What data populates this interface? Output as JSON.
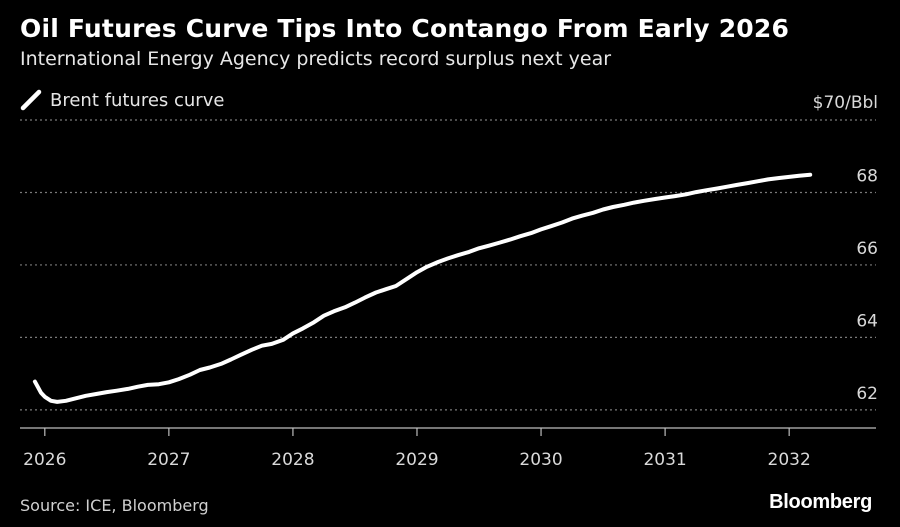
{
  "header": {
    "title": "Oil Futures Curve Tips Into Contango From Early 2026",
    "subtitle": "International Energy Agency predicts record surplus next year"
  },
  "legend": {
    "label": "Brent futures curve",
    "color": "#ffffff"
  },
  "footer": {
    "source": "Source: ICE, Bloomberg",
    "brand": "Bloomberg"
  },
  "chart_data": {
    "type": "line",
    "title": "Oil Futures Curve Tips Into Contango From Early 2026",
    "subtitle": "International Energy Agency predicts record surplus next year",
    "xlabel": "",
    "ylabel": "",
    "y_unit_label": "$70/Bbl",
    "xlim": [
      2025.8,
      2032.7
    ],
    "ylim": [
      61.5,
      70
    ],
    "y_ticks": [
      62,
      64,
      66,
      68
    ],
    "x_ticks": [
      2026,
      2027,
      2028,
      2029,
      2030,
      2031,
      2032
    ],
    "grid": "horizontal dotted",
    "legend_position": "top-left",
    "series": [
      {
        "name": "Brent futures curve",
        "color": "#ffffff",
        "x": [
          2025.92,
          2025.97,
          2026.0,
          2026.05,
          2026.1,
          2026.17,
          2026.25,
          2026.33,
          2026.42,
          2026.5,
          2026.58,
          2026.67,
          2026.75,
          2026.83,
          2026.92,
          2027.0,
          2027.08,
          2027.17,
          2027.25,
          2027.33,
          2027.42,
          2027.5,
          2027.58,
          2027.67,
          2027.75,
          2027.83,
          2027.92,
          2028.0,
          2028.08,
          2028.17,
          2028.25,
          2028.33,
          2028.42,
          2028.5,
          2028.58,
          2028.67,
          2028.75,
          2028.83,
          2028.92,
          2029.0,
          2029.08,
          2029.17,
          2029.25,
          2029.33,
          2029.42,
          2029.5,
          2029.58,
          2029.67,
          2029.75,
          2029.83,
          2029.92,
          2030.0,
          2030.08,
          2030.17,
          2030.25,
          2030.33,
          2030.42,
          2030.5,
          2030.58,
          2030.67,
          2030.75,
          2030.83,
          2030.92,
          2031.0,
          2031.08,
          2031.17,
          2031.25,
          2031.33,
          2031.42,
          2031.5,
          2031.58,
          2031.67,
          2031.75,
          2031.83,
          2031.92,
          2032.0,
          2032.08,
          2032.17
        ],
        "values": [
          62.78,
          62.47,
          62.36,
          62.25,
          62.22,
          62.25,
          62.32,
          62.39,
          62.44,
          62.49,
          62.53,
          62.58,
          62.64,
          62.69,
          62.71,
          62.76,
          62.85,
          62.97,
          63.1,
          63.17,
          63.27,
          63.39,
          63.52,
          63.66,
          63.77,
          63.82,
          63.93,
          64.11,
          64.25,
          64.42,
          64.6,
          64.72,
          64.83,
          64.96,
          65.1,
          65.24,
          65.33,
          65.42,
          65.62,
          65.8,
          65.95,
          66.08,
          66.18,
          66.27,
          66.36,
          66.46,
          66.53,
          66.62,
          66.7,
          66.79,
          66.88,
          66.98,
          67.07,
          67.17,
          67.28,
          67.36,
          67.44,
          67.53,
          67.6,
          67.66,
          67.72,
          67.77,
          67.82,
          67.86,
          67.9,
          67.95,
          68.01,
          68.06,
          68.11,
          68.16,
          68.21,
          68.26,
          68.31,
          68.36,
          68.4,
          68.43,
          68.46,
          68.49
        ]
      }
    ]
  }
}
